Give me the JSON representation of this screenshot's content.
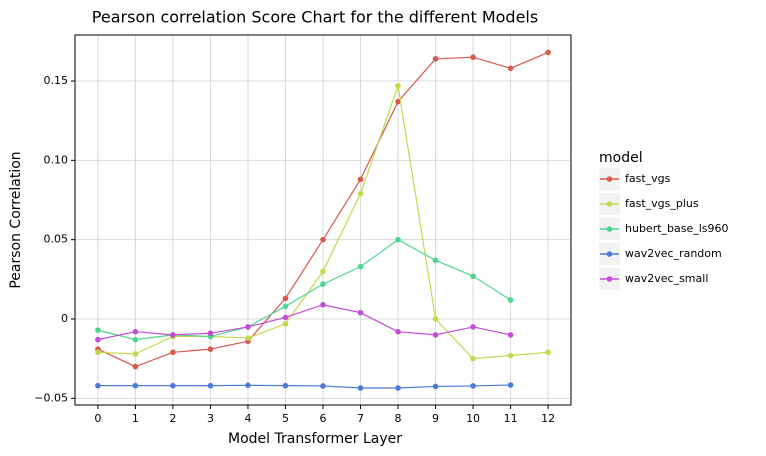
{
  "chart_data": {
    "type": "line",
    "title": "Pearson correlation Score Chart for the different Models",
    "xlabel": "Model Transformer Layer",
    "ylabel": "Pearson Correlation",
    "legend_title": "model",
    "x": [
      0,
      1,
      2,
      3,
      4,
      5,
      6,
      7,
      8,
      9,
      10,
      11,
      12
    ],
    "xlim": [
      -0.61,
      12.61
    ],
    "xticks": [
      0,
      1,
      2,
      3,
      4,
      5,
      6,
      7,
      8,
      9,
      10,
      11,
      12
    ],
    "ylim": [
      -0.0542,
      0.179
    ],
    "yticks": [
      {
        "value": -0.05,
        "label": "−0.05"
      },
      0,
      0.05,
      {
        "value": 0.1,
        "label": "0.10"
      },
      0.15
    ],
    "grid": true,
    "legend": "right",
    "series": [
      {
        "name": "fast_vgs",
        "color": "#d9594c",
        "values": [
          -0.019,
          -0.03,
          -0.021,
          -0.019,
          -0.014,
          0.013,
          0.05,
          0.088,
          0.137,
          0.164,
          0.165,
          0.158,
          0.168
        ]
      },
      {
        "name": "fast_vgs_plus",
        "color": "#c2d94c",
        "values": [
          -0.021,
          -0.022,
          -0.011,
          -0.011,
          -0.012,
          -0.003,
          0.03,
          0.079,
          0.147,
          0.0,
          -0.025,
          -0.023,
          -0.021
        ]
      },
      {
        "name": "hubert_base_ls960",
        "color": "#4cd98f",
        "values": [
          -0.007,
          -0.013,
          -0.01,
          -0.011,
          -0.005,
          0.008,
          0.022,
          0.033,
          0.05,
          0.037,
          0.027,
          0.012,
          null
        ]
      },
      {
        "name": "wav2vec_random",
        "color": "#4c7ad9",
        "values": [
          -0.042,
          -0.042,
          -0.042,
          -0.042,
          -0.0418,
          -0.042,
          -0.0422,
          -0.0435,
          -0.0435,
          -0.0425,
          -0.0422,
          -0.0416,
          null
        ]
      },
      {
        "name": "wav2vec_small",
        "color": "#c44cd9",
        "values": [
          -0.013,
          -0.008,
          -0.01,
          -0.009,
          -0.005,
          0.001,
          0.009,
          0.004,
          -0.008,
          -0.01,
          -0.005,
          -0.01,
          null
        ]
      }
    ]
  }
}
